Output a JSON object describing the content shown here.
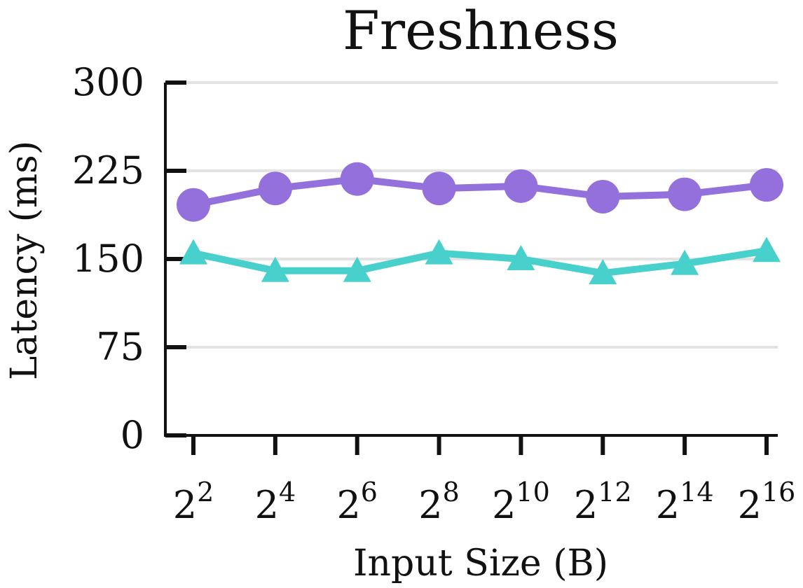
{
  "chart_data": {
    "type": "line",
    "title": "Freshness",
    "xlabel": "Input Size (B)",
    "ylabel": "Latency (ms)",
    "x_ticks": [
      {
        "base": "2",
        "exp": "2"
      },
      {
        "base": "2",
        "exp": "4"
      },
      {
        "base": "2",
        "exp": "6"
      },
      {
        "base": "2",
        "exp": "8"
      },
      {
        "base": "2",
        "exp": "10"
      },
      {
        "base": "2",
        "exp": "12"
      },
      {
        "base": "2",
        "exp": "14"
      },
      {
        "base": "2",
        "exp": "16"
      }
    ],
    "x": [
      4,
      16,
      64,
      256,
      1024,
      4096,
      16384,
      65536
    ],
    "y_ticks": [
      "0",
      "75",
      "150",
      "225",
      "300"
    ],
    "ylim": [
      0,
      300
    ],
    "grid": true,
    "series": [
      {
        "color": "#9370DB",
        "marker": "circle",
        "values": [
          196,
          210,
          218,
          210,
          212,
          203,
          205,
          213
        ]
      },
      {
        "color": "#48D1CC",
        "marker": "triangle",
        "values": [
          155,
          140,
          140,
          155,
          150,
          138,
          146,
          157
        ]
      }
    ]
  }
}
